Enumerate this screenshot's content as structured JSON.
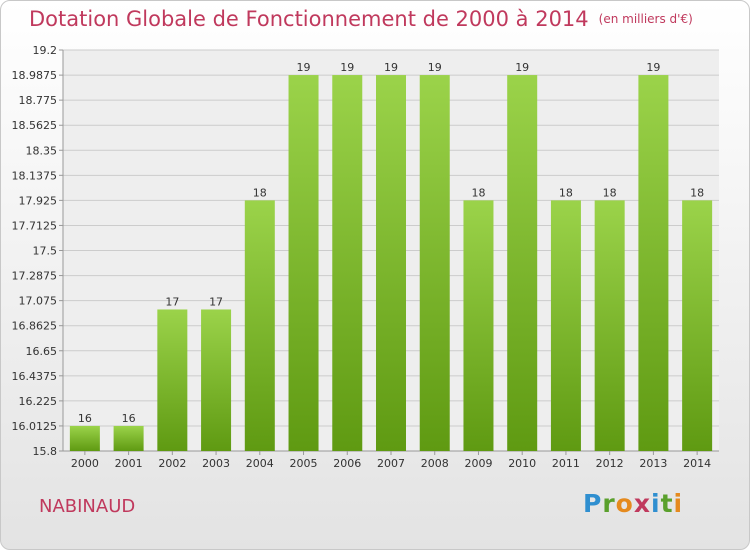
{
  "title": "Dotation Globale de Fonctionnement de 2000 à 2014",
  "subtitle": "(en milliers d'€)",
  "commune": "NABINAUD",
  "logo": "Proxiti",
  "chart_data": {
    "type": "bar",
    "title": "Dotation Globale de Fonctionnement de 2000 à 2014",
    "subtitle": "(en milliers d'€)",
    "xlabel": "",
    "ylabel": "",
    "categories": [
      "2000",
      "2001",
      "2002",
      "2003",
      "2004",
      "2005",
      "2006",
      "2007",
      "2008",
      "2009",
      "2010",
      "2011",
      "2012",
      "2013",
      "2014"
    ],
    "values": [
      16,
      16,
      17,
      17,
      18,
      19,
      19,
      19,
      19,
      18,
      19,
      18,
      18,
      19,
      18
    ],
    "labels": [
      "16",
      "16",
      "17",
      "17",
      "18",
      "19",
      "19",
      "19",
      "19",
      "18",
      "19",
      "18",
      "18",
      "19",
      "18"
    ],
    "bar_tops": [
      16.0125,
      16.0125,
      17.0,
      17.0,
      17.925,
      18.9875,
      18.9875,
      18.9875,
      18.9875,
      17.925,
      18.9875,
      17.925,
      17.925,
      18.9875,
      17.925
    ],
    "ylim": [
      15.8,
      19.2
    ],
    "yticks": [
      "19.2",
      "18.9875",
      "18.775",
      "18.5625",
      "18.35",
      "18.1375",
      "17.925",
      "17.7125",
      "17.5",
      "17.2875",
      "17.075",
      "16.8625",
      "16.65",
      "16.4375",
      "16.225",
      "16.0125",
      "15.8"
    ],
    "grid": true,
    "colors": {
      "bar_top": "#9bd34a",
      "bar_bottom": "#5f9a12",
      "grid": "#cccccc",
      "title": "#c0395d"
    }
  }
}
